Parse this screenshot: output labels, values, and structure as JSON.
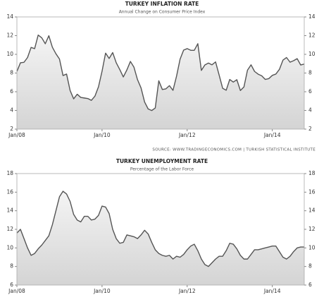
{
  "chart_data": [
    {
      "type": "area",
      "title": "TURKEY INFLATION RATE",
      "subtitle": "Annual Change on Consumer Price Index",
      "categories": [
        "Jan/08",
        null,
        null,
        null,
        null,
        null,
        null,
        null,
        null,
        null,
        null,
        null,
        null,
        null,
        null,
        null,
        null,
        null,
        null,
        null,
        null,
        null,
        null,
        null,
        "Jan/10",
        null,
        null,
        null,
        null,
        null,
        null,
        null,
        null,
        null,
        null,
        null,
        null,
        null,
        null,
        null,
        null,
        null,
        null,
        null,
        null,
        null,
        null,
        null,
        "Jan/12",
        null,
        null,
        null,
        null,
        null,
        null,
        null,
        null,
        null,
        null,
        null,
        null,
        null,
        null,
        null,
        null,
        null,
        null,
        null,
        null,
        null,
        null,
        null,
        "Jan/14",
        null,
        null,
        null,
        null,
        null,
        null,
        null,
        null,
        null
      ],
      "values": [
        8.17,
        9.1,
        9.15,
        9.66,
        10.74,
        10.61,
        12.06,
        11.77,
        11.13,
        11.99,
        10.76,
        10.06,
        9.5,
        7.73,
        7.89,
        6.13,
        5.24,
        5.73,
        5.39,
        5.33,
        5.27,
        5.08,
        5.53,
        6.53,
        8.19,
        10.13,
        9.56,
        10.19,
        9.1,
        8.37,
        7.58,
        8.33,
        9.24,
        8.62,
        7.29,
        6.4,
        4.9,
        4.16,
        3.99,
        4.26,
        7.17,
        6.24,
        6.31,
        6.65,
        6.15,
        7.66,
        9.48,
        10.45,
        10.61,
        10.43,
        10.43,
        11.14,
        8.28,
        8.87,
        9.07,
        8.88,
        9.19,
        7.8,
        6.37,
        6.16,
        7.31,
        7.03,
        7.29,
        6.13,
        6.51,
        8.3,
        8.88,
        8.17,
        7.88,
        7.71,
        7.32,
        7.4,
        7.75,
        7.89,
        8.39,
        9.38,
        9.66,
        9.16,
        9.32,
        9.54,
        8.86,
        8.96
      ],
      "color": "#555555",
      "ylim": [
        2,
        14
      ],
      "yticks": [
        2,
        4,
        6,
        8,
        10,
        12,
        14
      ]
    },
    {
      "type": "area",
      "title": "TURKEY UNEMPLOYMENT RATE",
      "subtitle": "Percentage of the Labor Force",
      "categories": [
        "Jan/08",
        null,
        null,
        null,
        null,
        null,
        null,
        null,
        null,
        null,
        null,
        null,
        null,
        null,
        null,
        null,
        null,
        null,
        null,
        null,
        null,
        null,
        null,
        null,
        "Jan/10",
        null,
        null,
        null,
        null,
        null,
        null,
        null,
        null,
        null,
        null,
        null,
        null,
        null,
        null,
        null,
        null,
        null,
        null,
        null,
        null,
        null,
        null,
        null,
        "Jan/12",
        null,
        null,
        null,
        null,
        null,
        null,
        null,
        null,
        null,
        null,
        null,
        null,
        null,
        null,
        null,
        null,
        null,
        null,
        null,
        null,
        null,
        null,
        null,
        "Jan/14",
        null,
        null,
        null,
        null,
        null,
        null,
        null,
        null,
        null
      ],
      "values": [
        11.6,
        12.0,
        11.0,
        10.0,
        9.2,
        9.4,
        9.9,
        10.3,
        10.8,
        11.3,
        12.5,
        14.0,
        15.5,
        16.1,
        15.8,
        15.0,
        13.6,
        13.0,
        12.8,
        13.4,
        13.4,
        13.0,
        13.1,
        13.5,
        14.5,
        14.4,
        13.7,
        12.0,
        11.0,
        10.5,
        10.6,
        11.4,
        11.3,
        11.2,
        11.0,
        11.4,
        11.9,
        11.5,
        10.6,
        9.8,
        9.4,
        9.2,
        9.1,
        9.2,
        8.8,
        9.1,
        9.0,
        9.3,
        9.8,
        10.2,
        10.4,
        9.7,
        8.8,
        8.2,
        8.0,
        8.4,
        8.8,
        9.1,
        9.1,
        9.7,
        10.5,
        10.4,
        9.9,
        9.2,
        8.8,
        8.8,
        9.3,
        9.8,
        9.8,
        9.9,
        10.0,
        10.1,
        10.2,
        10.2,
        9.6,
        9.0,
        8.8,
        9.1,
        9.6,
        10.0,
        10.1,
        10.1
      ],
      "color": "#555555",
      "ylim": [
        6,
        18
      ],
      "yticks": [
        6,
        8,
        10,
        12,
        14,
        16,
        18
      ]
    }
  ],
  "source": "SOURCE: WWW.TRADINGECONOMICS.COM  |  TURKISH STATISTICAL INSTITUTE"
}
